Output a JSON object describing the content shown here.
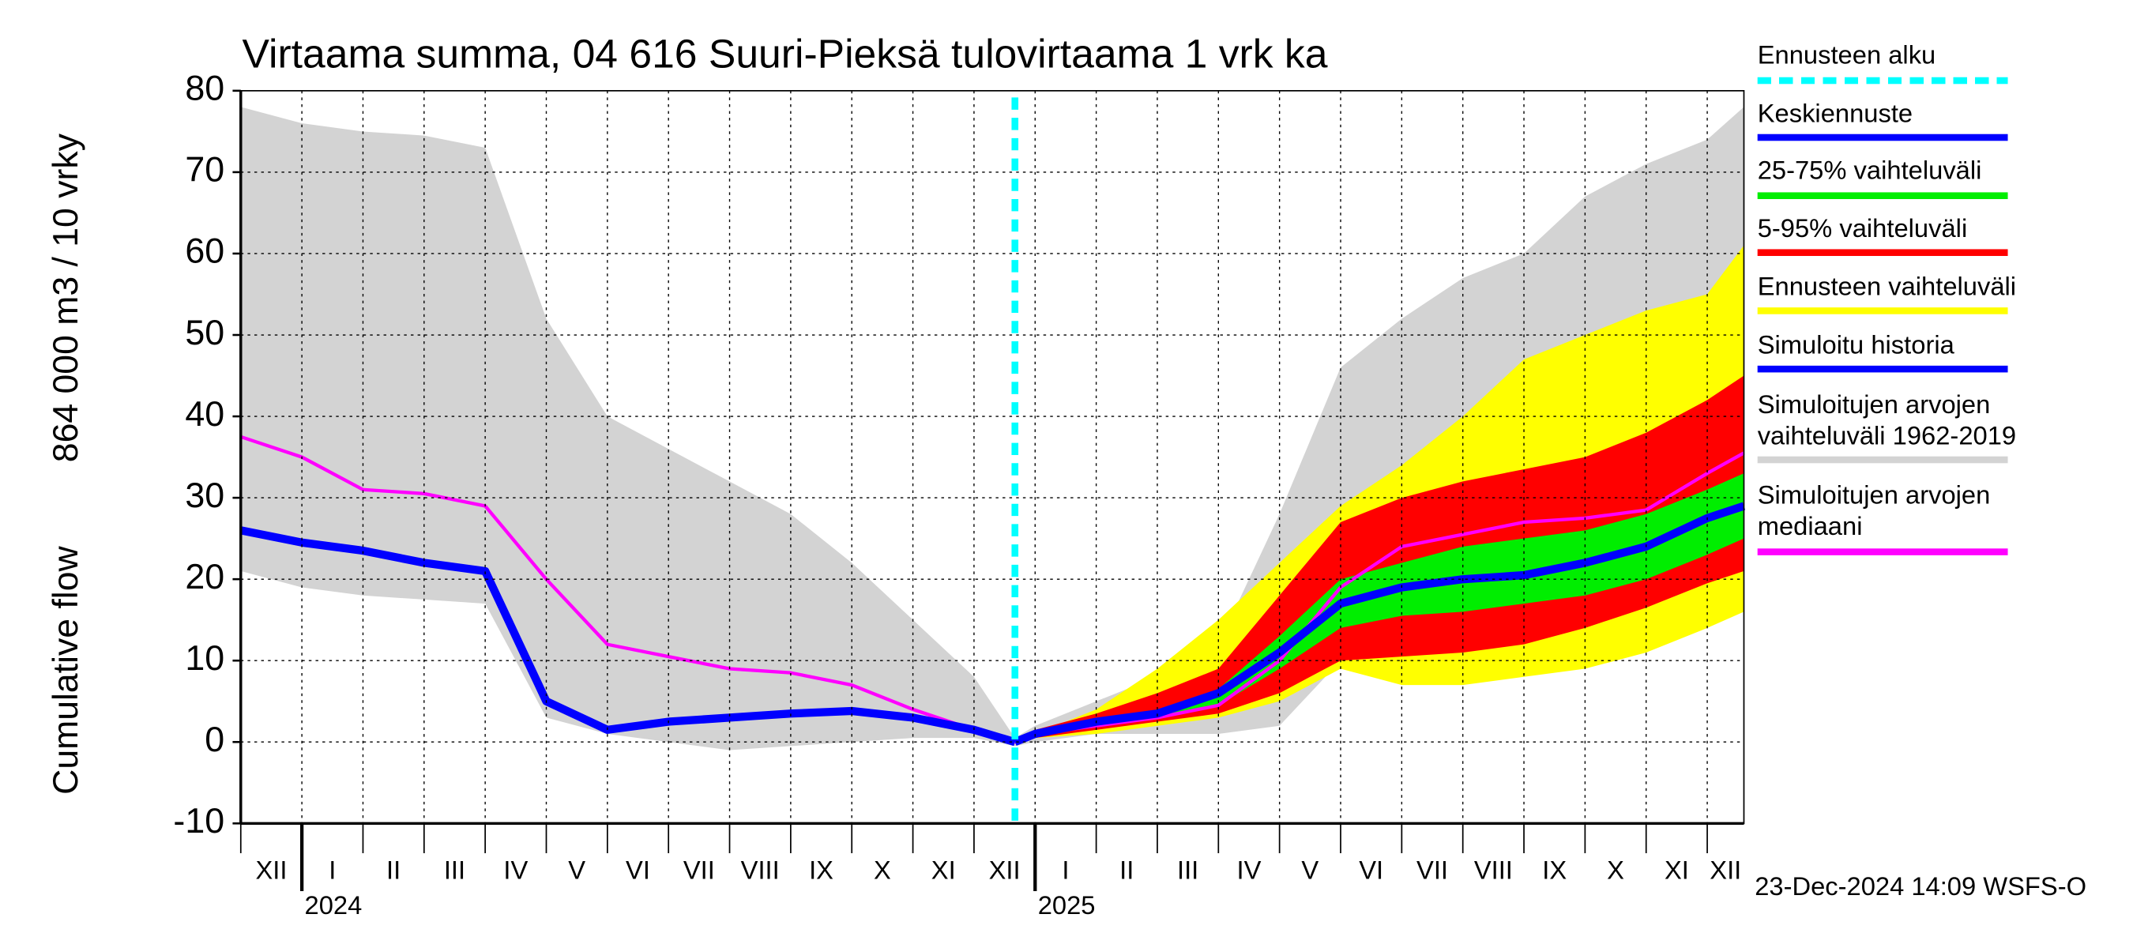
{
  "chart_data": {
    "type": "area",
    "title": "Virtaama summa, 04 616 Suuri-Pieksä tulovirtaama 1 vrk ka",
    "ylabel": [
      "Cumulative flow",
      "864 000 m3 / 10 vrky"
    ],
    "footer": "23-Dec-2024 14:09 WSFS-O",
    "xlim": [
      0,
      24.6
    ],
    "ylim": [
      -10,
      80
    ],
    "yticks": [
      -10,
      0,
      10,
      20,
      30,
      40,
      50,
      60,
      70,
      80
    ],
    "grid": true,
    "xticks": [
      {
        "value": 0,
        "label": "XII"
      },
      {
        "value": 1,
        "label": "I"
      },
      {
        "value": 2,
        "label": "II"
      },
      {
        "value": 3,
        "label": "III"
      },
      {
        "value": 4,
        "label": "IV"
      },
      {
        "value": 5,
        "label": "V"
      },
      {
        "value": 6,
        "label": "VI"
      },
      {
        "value": 7,
        "label": "VII"
      },
      {
        "value": 8,
        "label": "VIII"
      },
      {
        "value": 9,
        "label": "IX"
      },
      {
        "value": 10,
        "label": "X"
      },
      {
        "value": 11,
        "label": "XI"
      },
      {
        "value": 12,
        "label": "XII"
      },
      {
        "value": 13,
        "label": "I"
      },
      {
        "value": 14,
        "label": "II"
      },
      {
        "value": 15,
        "label": "III"
      },
      {
        "value": 16,
        "label": "IV"
      },
      {
        "value": 17,
        "label": "V"
      },
      {
        "value": 18,
        "label": "VI"
      },
      {
        "value": 19,
        "label": "VII"
      },
      {
        "value": 20,
        "label": "VIII"
      },
      {
        "value": 21,
        "label": "IX"
      },
      {
        "value": 22,
        "label": "X"
      },
      {
        "value": 23,
        "label": "XI"
      },
      {
        "value": 24,
        "label": "XII"
      }
    ],
    "year_ticks": [
      {
        "value": 1,
        "label": "2024"
      },
      {
        "value": 13,
        "label": "2025"
      }
    ],
    "forecast_start": {
      "name": "Ennusteen alku",
      "color": "#00ffff",
      "x": 12.67
    },
    "x": [
      0,
      1,
      2,
      3,
      4,
      5,
      6,
      7,
      8,
      9,
      10,
      11,
      12,
      12.67,
      13,
      14,
      15,
      16,
      17,
      18,
      19,
      20,
      21,
      22,
      23,
      24,
      24.6
    ],
    "series": [
      {
        "name": "Keskiennuste",
        "kind": "line",
        "color": "#0000ff",
        "values": [
          null,
          null,
          null,
          null,
          null,
          null,
          null,
          null,
          null,
          null,
          null,
          null,
          null,
          0,
          1,
          2.5,
          3.5,
          6,
          11,
          17,
          19,
          20,
          20.5,
          22,
          24,
          27.5,
          29
        ]
      },
      {
        "name": "25-75% vaihteluväli",
        "kind": "band",
        "color": "#00ee00",
        "high": [
          null,
          null,
          null,
          null,
          null,
          null,
          null,
          null,
          null,
          null,
          null,
          null,
          null,
          0,
          1.2,
          2.7,
          4,
          6.5,
          13,
          20,
          22,
          24,
          25,
          26,
          28,
          31,
          33
        ],
        "low": [
          null,
          null,
          null,
          null,
          null,
          null,
          null,
          null,
          null,
          null,
          null,
          null,
          null,
          0,
          0.7,
          2,
          3,
          4.5,
          9,
          14,
          15.5,
          16,
          17,
          18,
          20,
          23,
          25
        ]
      },
      {
        "name": "5-95% vaihteluväli",
        "kind": "band",
        "color": "#ff0000",
        "high": [
          null,
          null,
          null,
          null,
          null,
          null,
          null,
          null,
          null,
          null,
          null,
          null,
          null,
          0,
          1.5,
          3.5,
          6,
          9,
          18,
          27,
          30,
          32,
          33.5,
          35,
          38,
          42,
          45
        ],
        "low": [
          null,
          null,
          null,
          null,
          null,
          null,
          null,
          null,
          null,
          null,
          null,
          null,
          null,
          0,
          0.5,
          1.5,
          2.5,
          3.5,
          6,
          10,
          10.5,
          11,
          12,
          14,
          16.5,
          19.5,
          21
        ]
      },
      {
        "name": "Ennusteen vaihteluväli",
        "kind": "band",
        "color": "#ffff00",
        "high": [
          null,
          null,
          null,
          null,
          null,
          null,
          null,
          null,
          null,
          null,
          null,
          null,
          null,
          0,
          1,
          4,
          9,
          15,
          22,
          29,
          34,
          40,
          47,
          50,
          53,
          55,
          61
        ],
        "low": [
          null,
          null,
          null,
          null,
          null,
          null,
          null,
          null,
          null,
          null,
          null,
          null,
          null,
          0,
          0.5,
          1,
          2,
          3,
          5,
          9,
          7,
          7,
          8,
          9,
          11,
          14,
          16
        ]
      },
      {
        "name": "Simuloitu historia",
        "kind": "line",
        "color": "#0000ff",
        "values": [
          26,
          24.5,
          23.5,
          22,
          21,
          5,
          1.5,
          2.5,
          3,
          3.5,
          3.8,
          3,
          1.5,
          0,
          null,
          null,
          null,
          null,
          null,
          null,
          null,
          null,
          null,
          null,
          null,
          null,
          null
        ]
      },
      {
        "name": "Simuloitujen arvojen vaihteluväli 1962-2019",
        "kind": "band",
        "color": "#d3d3d3",
        "high": [
          78,
          76,
          75,
          74.5,
          73,
          52,
          40,
          36,
          32,
          28,
          22,
          15,
          8,
          0.5,
          2,
          5,
          8,
          12,
          28,
          46,
          52,
          57,
          60,
          67,
          71,
          74,
          78
        ],
        "low": [
          21,
          19,
          18,
          17.5,
          17,
          3,
          1,
          0,
          -1,
          -0.5,
          0,
          0.5,
          0.5,
          -0.5,
          0,
          1,
          1,
          1,
          2,
          10,
          10,
          10,
          11,
          13,
          15,
          16,
          16
        ]
      },
      {
        "name": "Simuloitujen arvojen mediaani",
        "kind": "line",
        "color": "#ff00ff",
        "values": [
          37.5,
          35,
          31,
          30.5,
          29,
          20,
          12,
          10.5,
          9,
          8.5,
          7,
          4,
          1.5,
          0,
          1,
          2,
          3,
          4.5,
          10,
          19,
          24,
          25.5,
          27,
          27.5,
          28.5,
          33,
          35.5
        ]
      }
    ]
  }
}
